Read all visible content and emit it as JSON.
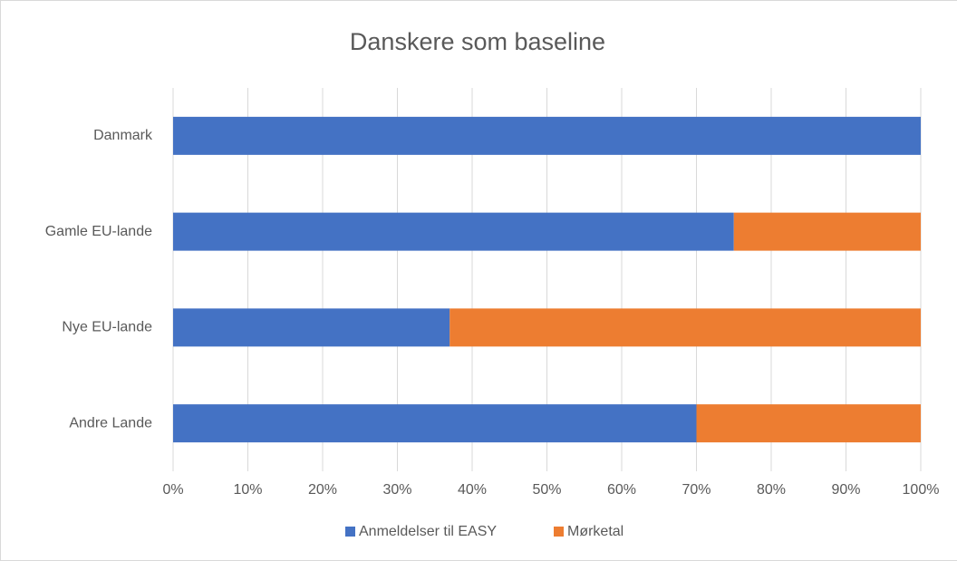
{
  "chart_data": {
    "type": "stacked_barh",
    "title": "Danskere som baseline",
    "categories": [
      "Danmark",
      "Gamle EU-lande",
      "Nye EU-lande",
      "Andre Lande"
    ],
    "series": [
      {
        "name": "Anmeldelser til EASY",
        "color": "#4472c4",
        "values": [
          100,
          75,
          37,
          70
        ]
      },
      {
        "name": "Mørketal",
        "color": "#ed7d31",
        "values": [
          0,
          25,
          63,
          30
        ]
      }
    ],
    "xlim": [
      0,
      100
    ],
    "xticks": [
      {
        "value": 0,
        "label": "0%"
      },
      {
        "value": 10,
        "label": "10%"
      },
      {
        "value": 20,
        "label": "20%"
      },
      {
        "value": 30,
        "label": "30%"
      },
      {
        "value": 40,
        "label": "40%"
      },
      {
        "value": 50,
        "label": "50%"
      },
      {
        "value": 60,
        "label": "60%"
      },
      {
        "value": 70,
        "label": "70%"
      },
      {
        "value": 80,
        "label": "80%"
      },
      {
        "value": 90,
        "label": "90%"
      },
      {
        "value": 100,
        "label": "100%"
      }
    ],
    "grid": true,
    "legend": "bottom"
  }
}
